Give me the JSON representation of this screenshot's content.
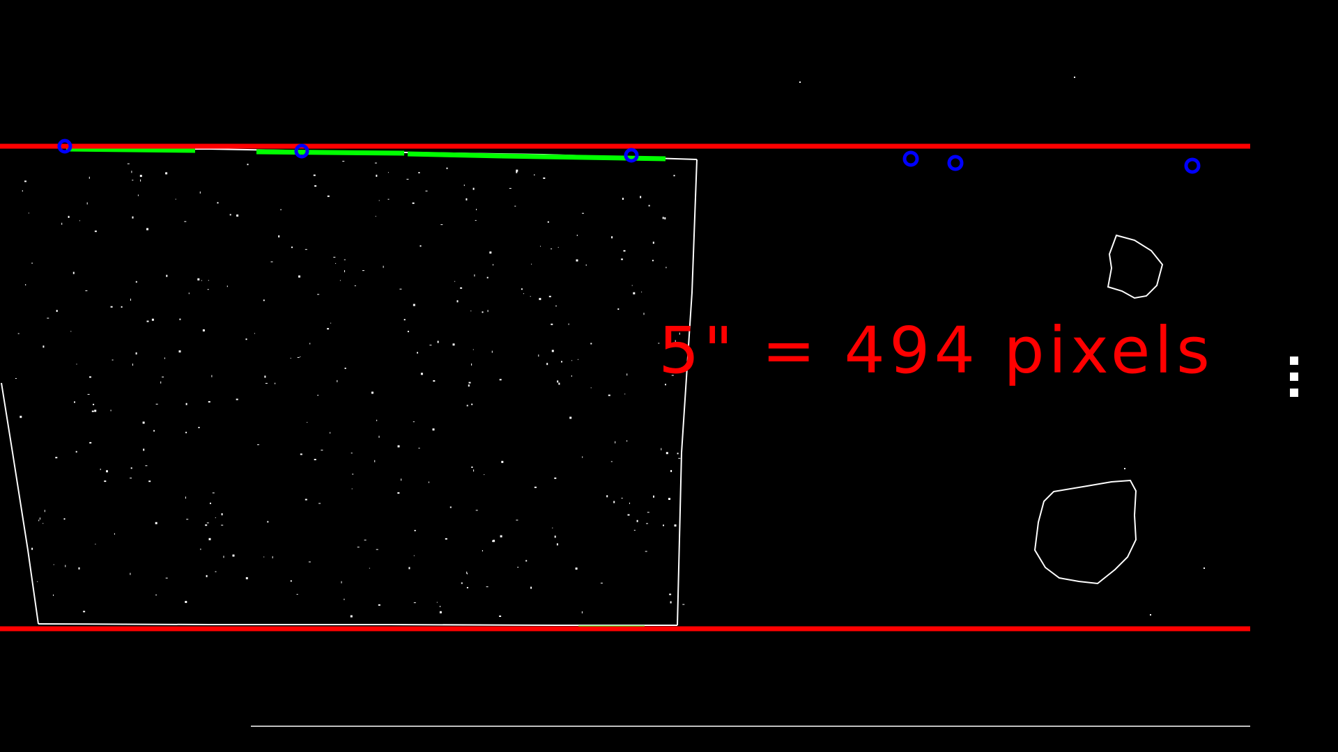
{
  "overlay": {
    "scale_text": "5\" = 494 pixels",
    "scale_color": "#ff0000",
    "reference_line_color": "#ff0000",
    "fit_line_color": "#00ff00",
    "sample_point_color": "#0000ff",
    "edge_color": "#ffffff",
    "background_color": "#000000"
  },
  "menu": {
    "icon": "vertical-ellipsis-icon"
  }
}
